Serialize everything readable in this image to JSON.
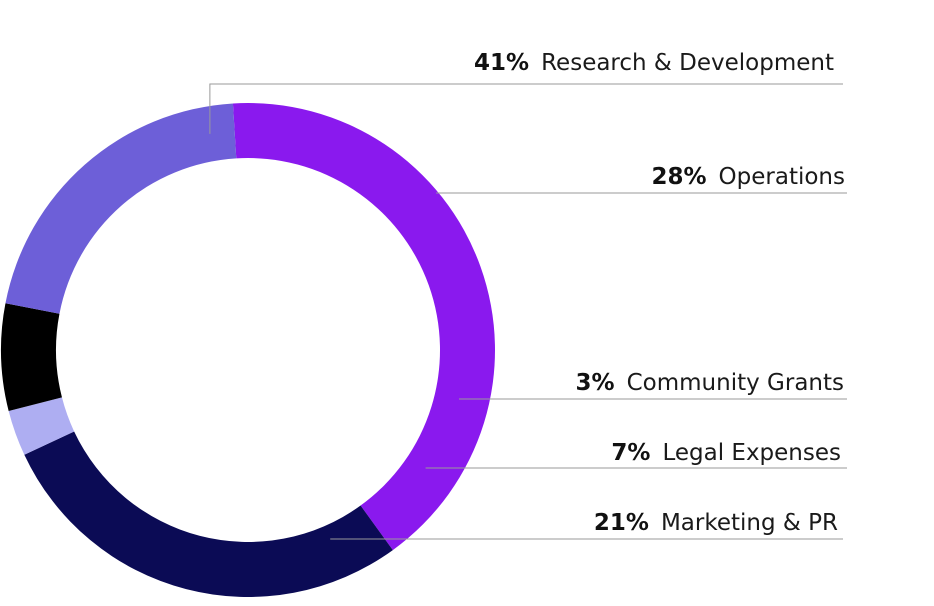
{
  "chart_data": {
    "type": "pie",
    "variant": "donut",
    "slices": [
      {
        "label": "Research & Development",
        "value": 41,
        "display": "41%",
        "color": "#8a19ee"
      },
      {
        "label": "Operations",
        "value": 28,
        "display": "28%",
        "color": "#0b0b55"
      },
      {
        "label": "Community Grants",
        "value": 3,
        "display": "3%",
        "color": "#aeaef2"
      },
      {
        "label": "Legal Expenses",
        "value": 7,
        "display": "7%",
        "color": "#000000"
      },
      {
        "label": "Marketing & PR",
        "value": 21,
        "display": "21%",
        "color": "#6d5fd8"
      }
    ],
    "legend": "right, with leader lines"
  }
}
